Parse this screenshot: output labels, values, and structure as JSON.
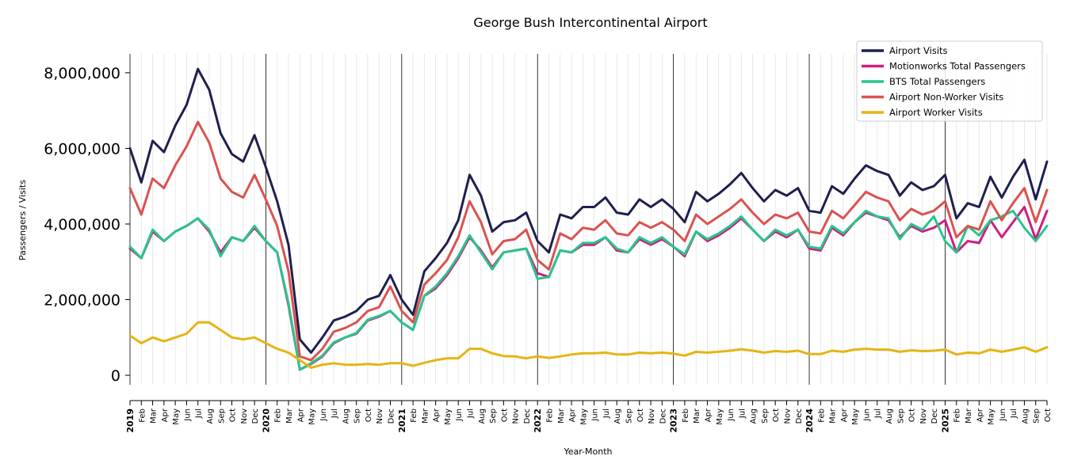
{
  "chart_data": {
    "type": "line",
    "title": "George Bush Intercontinental Airport",
    "xlabel": "Year-Month",
    "ylabel": "Passengers / Visits",
    "ylim": [
      -250000,
      8500000
    ],
    "yticks": [
      0,
      2000000,
      4000000,
      6000000,
      8000000
    ],
    "ytick_labels": [
      "0",
      "2,000,000",
      "4,000,000",
      "6,000,000",
      "8,000,000"
    ],
    "grid": "vertical-monthly",
    "legend_position": "top-right",
    "year_labels": [
      "2019",
      "2020",
      "2021",
      "2022",
      "2023",
      "2024",
      "2025"
    ],
    "month_labels": [
      "Feb",
      "Mar",
      "Apr",
      "May",
      "Jun",
      "Jul",
      "Aug",
      "Sep",
      "Oct",
      "Nov",
      "Dec"
    ],
    "x_start": "2019-01",
    "x_end": "2025-10",
    "series": [
      {
        "name": "Airport Visits",
        "color": "#1f1f4f",
        "values": [
          6000000,
          5100000,
          6200000,
          5900000,
          6600000,
          7150000,
          8100000,
          7550000,
          6400000,
          5850000,
          5650000,
          6350000,
          5500000,
          4600000,
          3450000,
          950000,
          600000,
          1000000,
          1450000,
          1550000,
          1700000,
          2000000,
          2100000,
          2650000,
          2000000,
          1600000,
          2750000,
          3100000,
          3500000,
          4100000,
          5300000,
          4750000,
          3800000,
          4050000,
          4100000,
          4300000,
          3550000,
          3250000,
          4250000,
          4150000,
          4450000,
          4450000,
          4700000,
          4300000,
          4250000,
          4650000,
          4450000,
          4650000,
          4400000,
          4050000,
          4850000,
          4600000,
          4800000,
          5050000,
          5350000,
          4950000,
          4600000,
          4900000,
          4750000,
          4950000,
          4350000,
          4300000,
          5000000,
          4800000,
          5200000,
          5550000,
          5400000,
          5300000,
          4750000,
          5100000,
          4900000,
          5000000,
          5300000,
          4150000,
          4550000,
          4450000,
          5250000,
          4700000,
          5250000,
          5700000,
          4650000,
          5650000
        ]
      },
      {
        "name": "Motionworks Total Passengers",
        "color": "#cc1f82",
        "values": [
          3350000,
          3100000,
          3800000,
          3550000,
          3800000,
          3950000,
          4150000,
          3800000,
          3250000,
          3650000,
          3550000,
          3900000,
          3550000,
          3250000,
          1850000,
          150000,
          300000,
          500000,
          850000,
          1000000,
          1100000,
          1450000,
          1550000,
          1700000,
          1400000,
          1200000,
          2100000,
          2300000,
          2650000,
          3100000,
          3650000,
          3300000,
          2850000,
          3250000,
          3300000,
          3350000,
          2700000,
          2600000,
          3300000,
          3250000,
          3450000,
          3450000,
          3650000,
          3300000,
          3250000,
          3600000,
          3450000,
          3600000,
          3400000,
          3150000,
          3800000,
          3550000,
          3700000,
          3900000,
          4150000,
          3850000,
          3550000,
          3800000,
          3650000,
          3850000,
          3350000,
          3300000,
          3900000,
          3700000,
          4050000,
          4300000,
          4200000,
          4100000,
          3650000,
          3950000,
          3800000,
          3900000,
          4100000,
          3250000,
          3550000,
          3500000,
          4100000,
          3650000,
          4050000,
          4450000,
          3600000,
          4350000
        ]
      },
      {
        "name": "BTS Total Passengers",
        "color": "#29c48c",
        "values": [
          3400000,
          3100000,
          3850000,
          3550000,
          3800000,
          3950000,
          4150000,
          3850000,
          3150000,
          3650000,
          3550000,
          3950000,
          3550000,
          3250000,
          1900000,
          150000,
          320000,
          520000,
          870000,
          1000000,
          1120000,
          1470000,
          1570000,
          1700000,
          1400000,
          1200000,
          2100000,
          2350000,
          2700000,
          3150000,
          3700000,
          3250000,
          2800000,
          3250000,
          3300000,
          3350000,
          2550000,
          2600000,
          3300000,
          3250000,
          3500000,
          3500000,
          3650000,
          3350000,
          3250000,
          3650000,
          3500000,
          3650000,
          3400000,
          3200000,
          3800000,
          3600000,
          3750000,
          3950000,
          4200000,
          3850000,
          3550000,
          3850000,
          3700000,
          3850000,
          3400000,
          3350000,
          3950000,
          3750000,
          4050000,
          4350000,
          4200000,
          4150000,
          3600000,
          4000000,
          3850000,
          4200000,
          3550000,
          3250000,
          3950000,
          3700000,
          4100000,
          4200000,
          4350000,
          3900000,
          3550000,
          3950000
        ]
      },
      {
        "name": "Airport Non-Worker Visits",
        "color": "#d9534f",
        "values": [
          4950000,
          4250000,
          5200000,
          4950000,
          5550000,
          6050000,
          6700000,
          6150000,
          5200000,
          4850000,
          4700000,
          5300000,
          4650000,
          3950000,
          2750000,
          500000,
          400000,
          700000,
          1150000,
          1250000,
          1400000,
          1700000,
          1800000,
          2350000,
          1700000,
          1400000,
          2400000,
          2700000,
          3050000,
          3650000,
          4600000,
          4050000,
          3200000,
          3550000,
          3600000,
          3850000,
          3050000,
          2800000,
          3750000,
          3600000,
          3900000,
          3850000,
          4100000,
          3750000,
          3700000,
          4050000,
          3900000,
          4050000,
          3850000,
          3550000,
          4250000,
          4000000,
          4200000,
          4400000,
          4650000,
          4300000,
          4000000,
          4250000,
          4150000,
          4300000,
          3800000,
          3750000,
          4350000,
          4150000,
          4500000,
          4850000,
          4700000,
          4600000,
          4100000,
          4400000,
          4250000,
          4350000,
          4600000,
          3650000,
          3950000,
          3850000,
          4600000,
          4100000,
          4550000,
          4950000,
          4050000,
          4900000
        ]
      },
      {
        "name": "Airport Worker Visits",
        "color": "#e6b414",
        "values": [
          1050000,
          850000,
          1000000,
          900000,
          1000000,
          1100000,
          1400000,
          1400000,
          1200000,
          1000000,
          950000,
          1000000,
          850000,
          700000,
          600000,
          400000,
          200000,
          280000,
          320000,
          280000,
          280000,
          300000,
          280000,
          320000,
          320000,
          250000,
          330000,
          400000,
          450000,
          450000,
          700000,
          700000,
          580000,
          510000,
          500000,
          450000,
          500000,
          460000,
          500000,
          550000,
          580000,
          580000,
          600000,
          550000,
          550000,
          600000,
          580000,
          600000,
          570000,
          520000,
          620000,
          600000,
          620000,
          650000,
          690000,
          650000,
          600000,
          640000,
          620000,
          650000,
          560000,
          560000,
          650000,
          620000,
          680000,
          700000,
          680000,
          680000,
          620000,
          660000,
          640000,
          650000,
          680000,
          550000,
          600000,
          580000,
          680000,
          620000,
          680000,
          740000,
          620000,
          740000
        ]
      }
    ]
  }
}
